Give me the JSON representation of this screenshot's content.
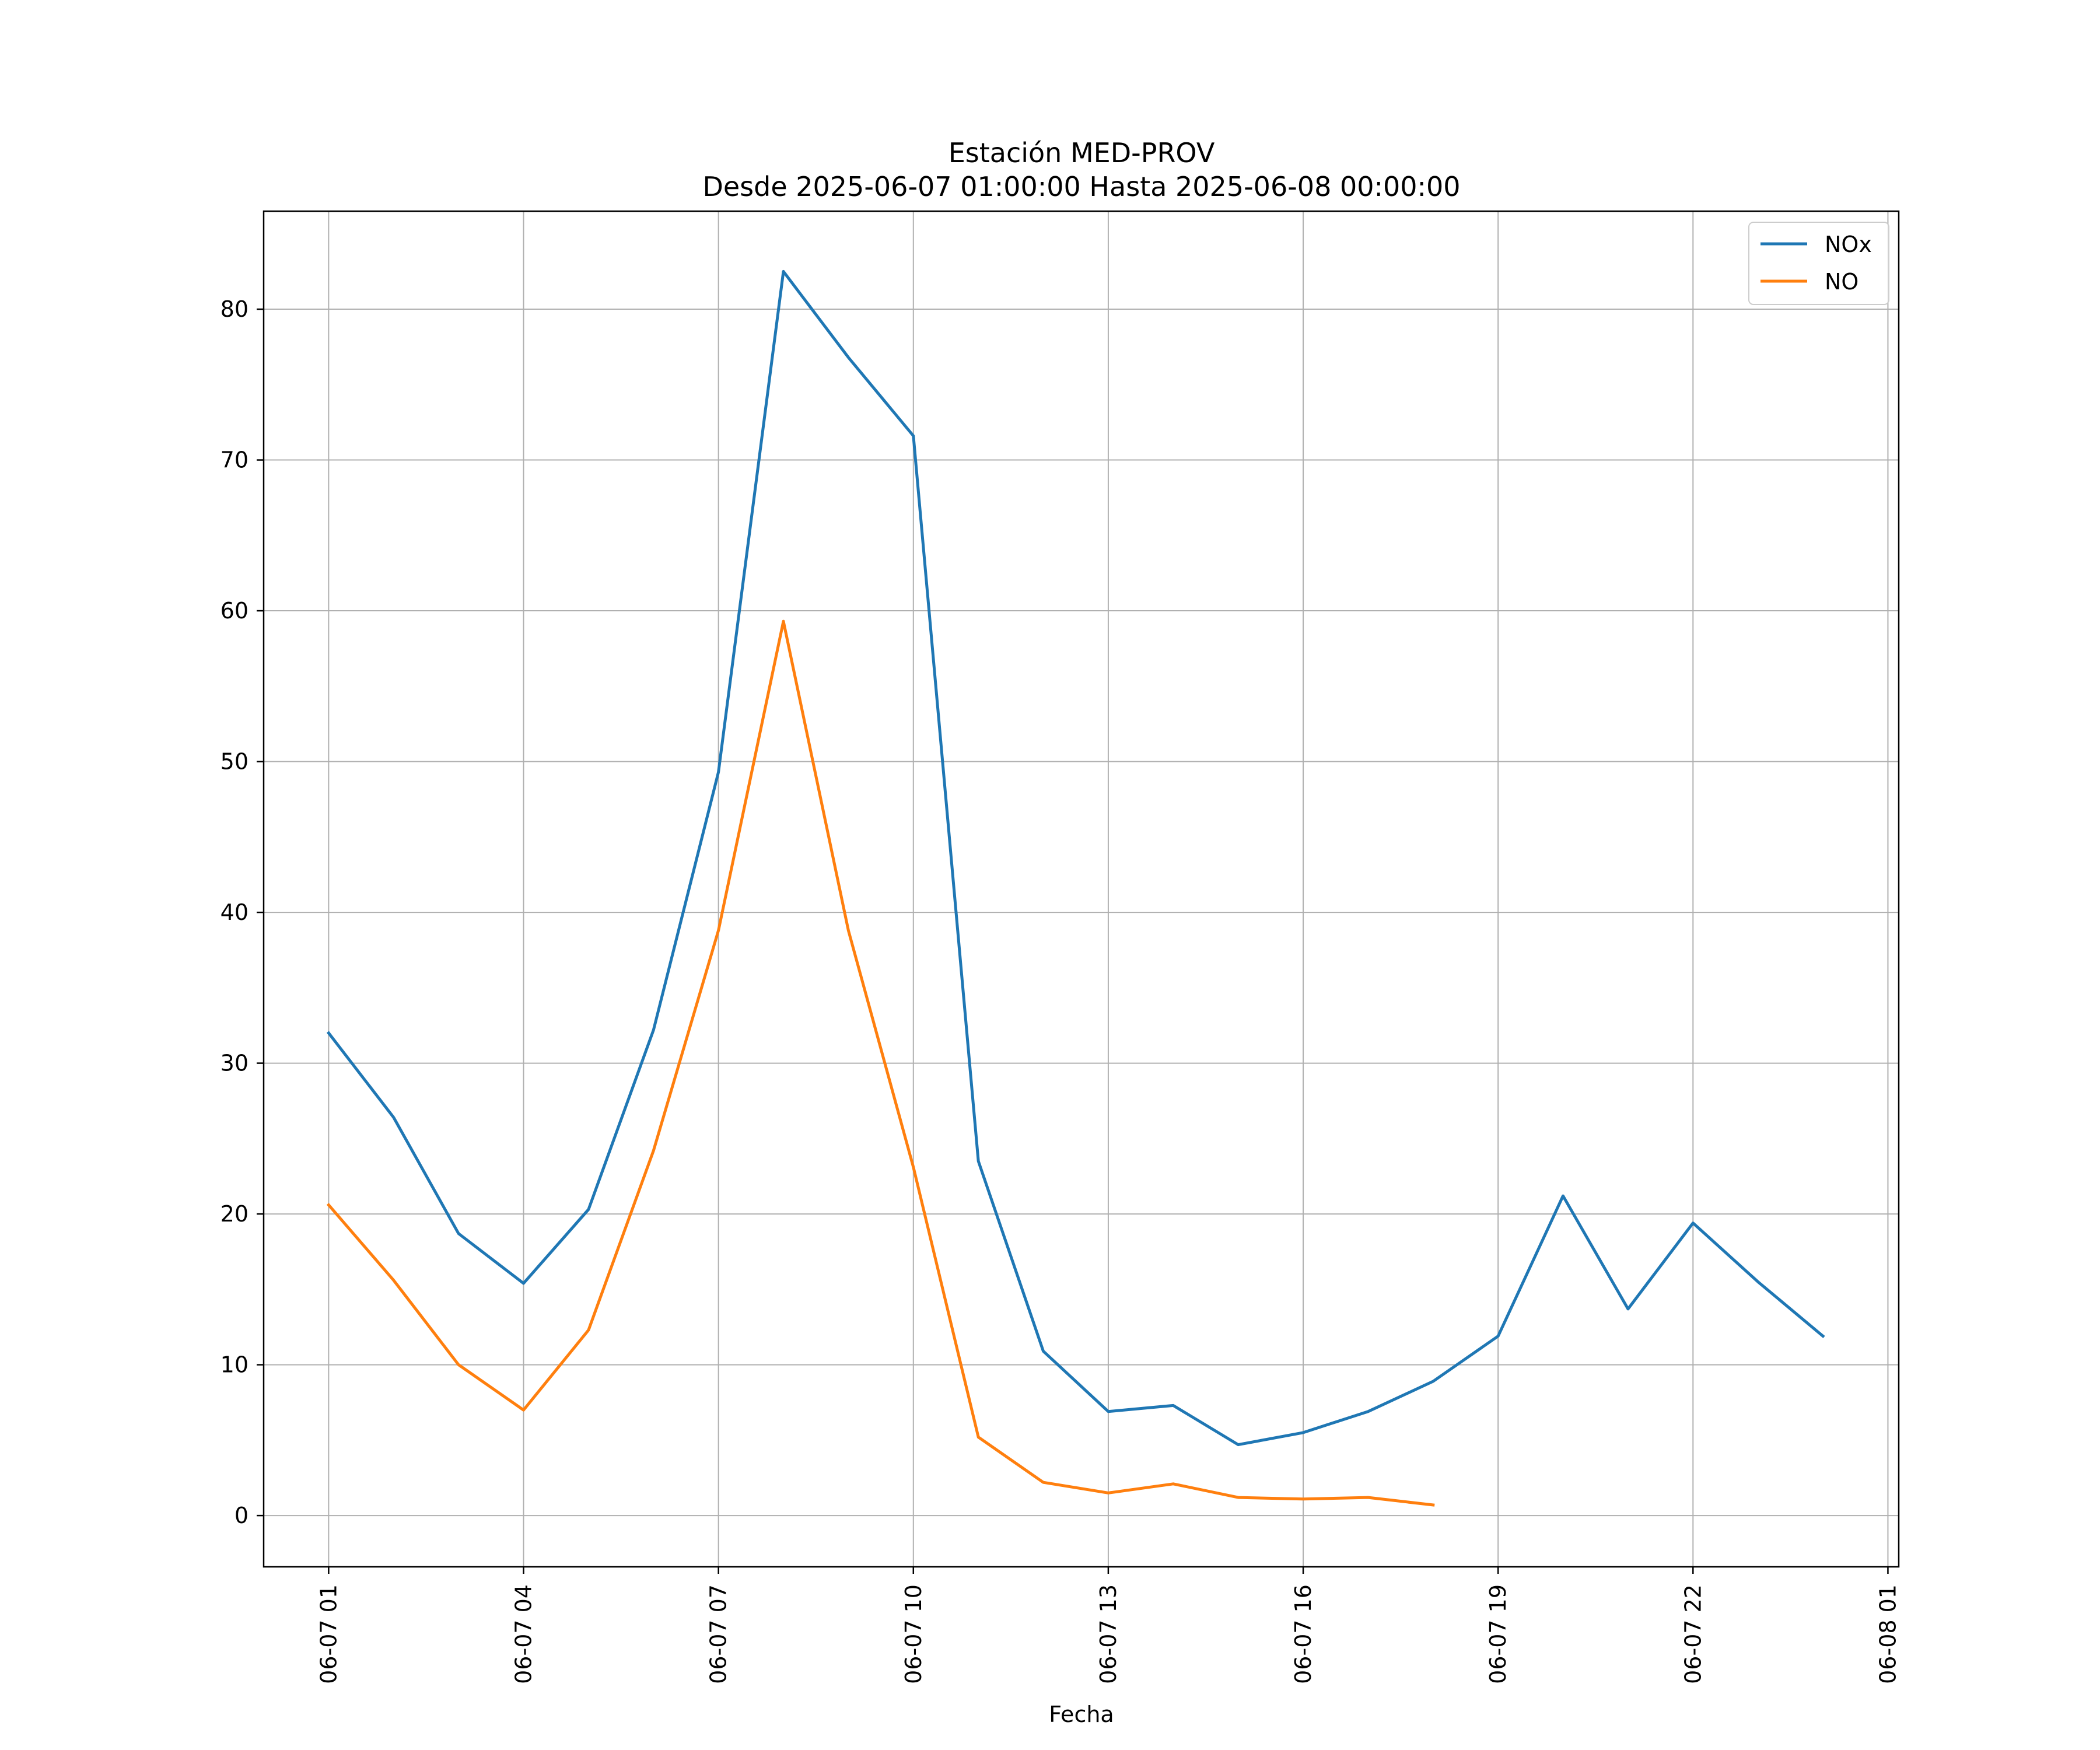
{
  "chart_data": {
    "type": "line",
    "title": "Estación MED-PROV",
    "subtitle": "Desde 2025-06-07 01:00:00 Hasta 2025-06-08 00:00:00",
    "xlabel": "Fecha",
    "ylabel": "",
    "x": [
      "2025-06-07 01:00",
      "2025-06-07 02:00",
      "2025-06-07 03:00",
      "2025-06-07 04:00",
      "2025-06-07 05:00",
      "2025-06-07 06:00",
      "2025-06-07 07:00",
      "2025-06-07 08:00",
      "2025-06-07 09:00",
      "2025-06-07 10:00",
      "2025-06-07 11:00",
      "2025-06-07 12:00",
      "2025-06-07 13:00",
      "2025-06-07 14:00",
      "2025-06-07 15:00",
      "2025-06-07 16:00",
      "2025-06-07 17:00",
      "2025-06-07 18:00",
      "2025-06-07 19:00",
      "2025-06-07 20:00",
      "2025-06-07 21:00",
      "2025-06-07 22:00",
      "2025-06-07 23:00",
      "2025-06-08 00:00"
    ],
    "xlim": [
      "2025-06-07 00:00",
      "2025-06-08 01:10"
    ],
    "xticks": [
      "2025-06-07 01:00",
      "2025-06-07 04:00",
      "2025-06-07 07:00",
      "2025-06-07 10:00",
      "2025-06-07 13:00",
      "2025-06-07 16:00",
      "2025-06-07 19:00",
      "2025-06-07 22:00",
      "2025-06-08 01:00"
    ],
    "xtick_labels": [
      "06-07 01",
      "06-07 04",
      "06-07 07",
      "06-07 10",
      "06-07 13",
      "06-07 16",
      "06-07 19",
      "06-07 22",
      "06-08 01"
    ],
    "yticks": [
      0,
      10,
      20,
      30,
      40,
      50,
      60,
      70,
      80
    ],
    "ylim": [
      -3.4,
      86.5
    ],
    "grid": true,
    "legend_position": "top-right",
    "series": [
      {
        "name": "NOx",
        "color": "#1f77b4",
        "values": [
          32.0,
          26.4,
          18.7,
          15.4,
          20.3,
          32.2,
          49.3,
          82.5,
          76.8,
          71.6,
          23.5,
          10.9,
          6.9,
          7.3,
          4.7,
          5.5,
          6.9,
          8.9,
          11.9,
          21.2,
          13.7,
          19.4,
          15.5,
          11.9
        ]
      },
      {
        "name": "NO",
        "color": "#ff7f0e",
        "values": [
          20.6,
          15.6,
          10.0,
          7.0,
          12.3,
          24.2,
          38.8,
          59.3,
          38.8,
          23.1,
          5.2,
          2.2,
          1.5,
          2.1,
          1.2,
          1.1,
          1.2,
          0.7,
          null,
          null,
          null,
          null,
          null,
          null
        ]
      }
    ]
  }
}
